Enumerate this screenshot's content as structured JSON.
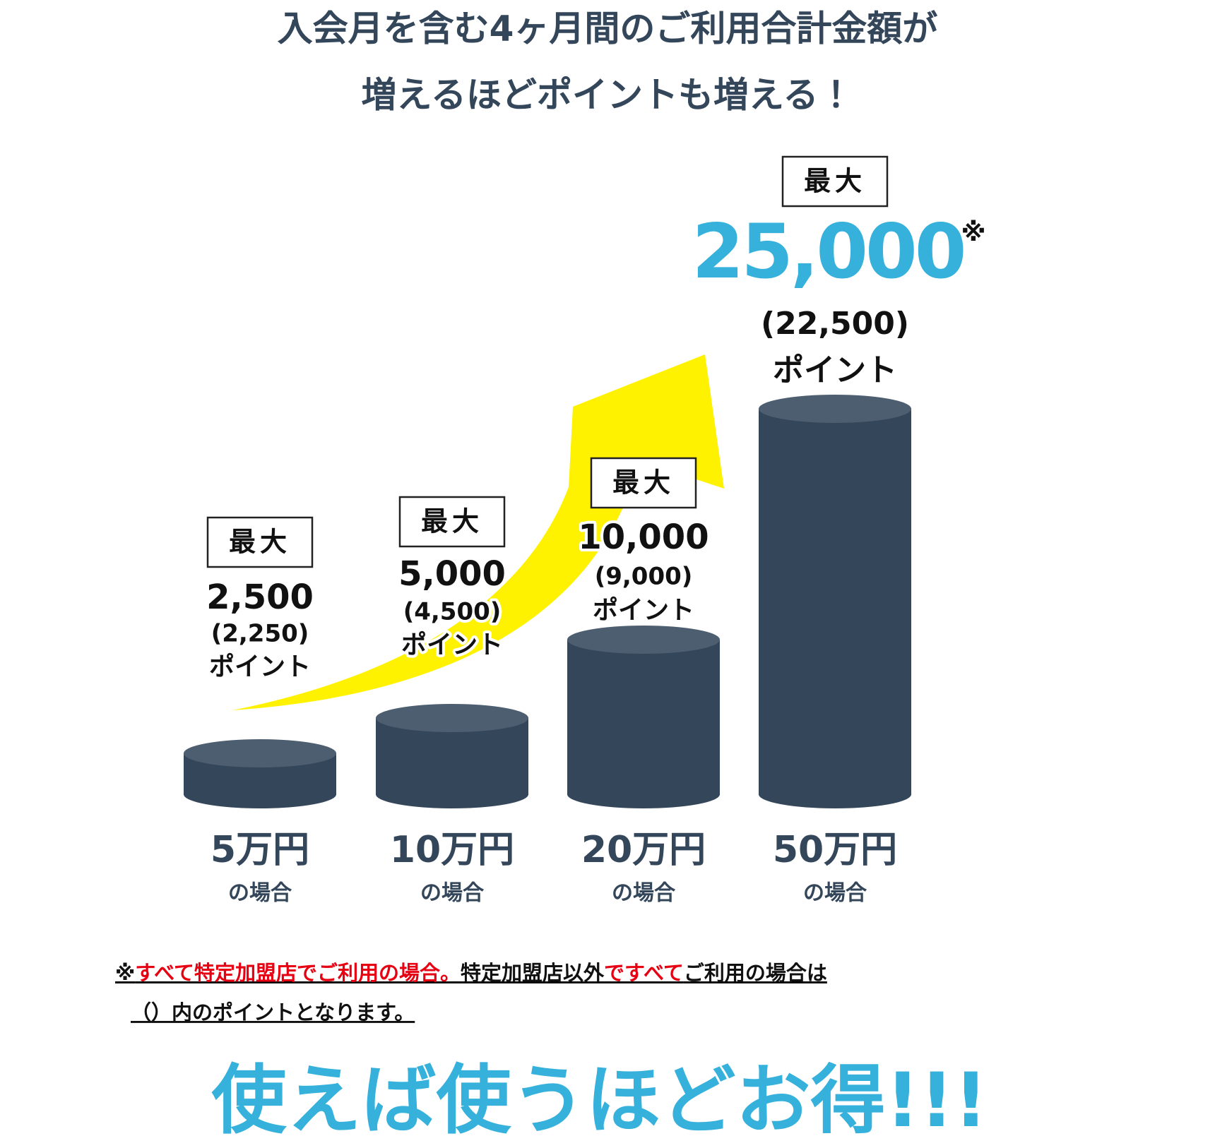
{
  "title": {
    "lines": [
      "入会月を含む4ヶ月間のご利用合計金額が",
      "増えるほどポイントも増える！"
    ]
  },
  "columns": [
    {
      "badge": "最大",
      "points": "2,500",
      "base_points": "(2,250)",
      "unit": "ポイント",
      "amount": "5万円",
      "suffix": "の場合"
    },
    {
      "badge": "最大",
      "points": "5,000",
      "base_points": "(4,500)",
      "unit": "ポイント",
      "amount": "10万円",
      "suffix": "の場合"
    },
    {
      "badge": "最大",
      "points": "10,000",
      "base_points": "(9,000)",
      "unit": "ポイント",
      "amount": "20万円",
      "suffix": "の場合"
    },
    {
      "badge": "最大",
      "points": "25,000",
      "mark": "※",
      "base_points": "(22,500)",
      "unit": "ポイント",
      "amount": "50万円",
      "suffix": "の場合"
    }
  ],
  "note": {
    "line1": [
      "※",
      "すべて特定加盟店でご利用の場合。",
      "特定加盟店以外",
      "ですべて",
      "ご利用の場合は"
    ],
    "line2": "（）内のポイントとなります。"
  },
  "slogan": "使えば使うほどお得!!!"
}
